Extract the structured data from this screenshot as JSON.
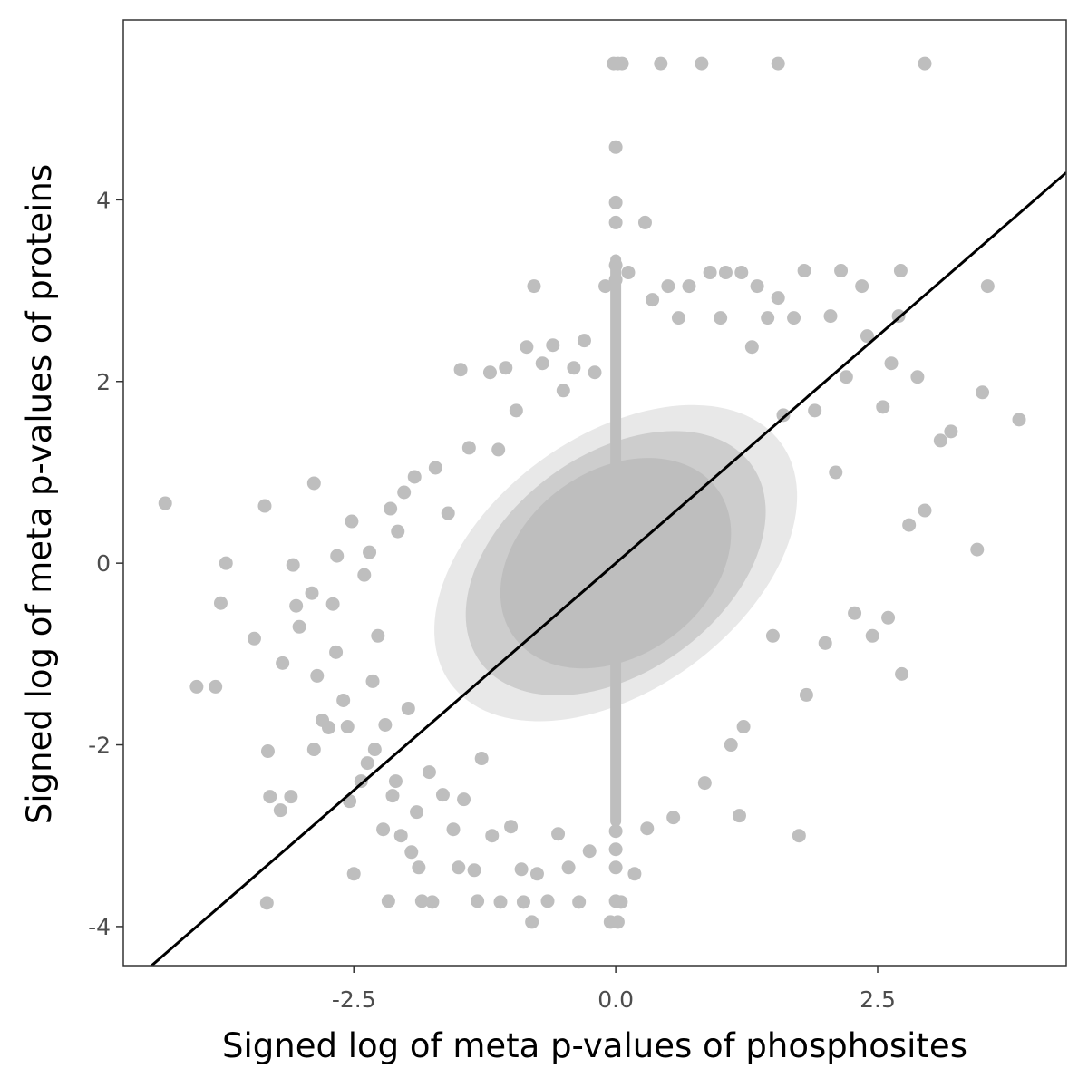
{
  "chart_data": {
    "type": "scatter",
    "xlabel": "Signed log of meta p-values of phosphosites",
    "ylabel": "Signed log of meta p-values of proteins",
    "xlim": [
      -4.7,
      4.3
    ],
    "ylim": [
      -4.43,
      5.98
    ],
    "x_ticks": [
      {
        "value": -2.5,
        "label": "-2.5"
      },
      {
        "value": 0.0,
        "label": "0.0"
      },
      {
        "value": 2.5,
        "label": "2.5"
      }
    ],
    "y_ticks": [
      {
        "value": -4,
        "label": "-4"
      },
      {
        "value": -2,
        "label": "-2"
      },
      {
        "value": 0,
        "label": "0"
      },
      {
        "value": 2,
        "label": "2"
      },
      {
        "value": 4,
        "label": "4"
      }
    ],
    "grid": false,
    "legend": "none",
    "point_color": "#bebebe",
    "line_color": "#000000",
    "reference_line": {
      "slope": 1,
      "intercept": 0
    },
    "series": [
      {
        "points": [
          [
            -4.3,
            0.66
          ],
          [
            -4.0,
            -1.36
          ],
          [
            -3.82,
            -1.36
          ],
          [
            -3.77,
            -0.44
          ],
          [
            -3.72,
            0.0
          ],
          [
            -3.45,
            -0.83
          ],
          [
            -3.35,
            0.63
          ],
          [
            -3.32,
            -2.07
          ],
          [
            -3.3,
            -2.57
          ],
          [
            -3.33,
            -3.74
          ],
          [
            -3.18,
            -1.1
          ],
          [
            -3.2,
            -2.72
          ],
          [
            -3.1,
            -2.57
          ],
          [
            -3.08,
            -0.02
          ],
          [
            -3.05,
            -0.47
          ],
          [
            -3.02,
            -0.7
          ],
          [
            -2.9,
            -0.33
          ],
          [
            -2.88,
            -2.05
          ],
          [
            -2.85,
            -1.24
          ],
          [
            -2.88,
            0.88
          ],
          [
            -2.8,
            -1.73
          ],
          [
            -2.74,
            -1.81
          ],
          [
            -2.7,
            -0.45
          ],
          [
            -2.66,
            0.08
          ],
          [
            -2.67,
            -0.98
          ],
          [
            -2.6,
            -1.51
          ],
          [
            -2.56,
            -1.8
          ],
          [
            -2.54,
            -2.62
          ],
          [
            -2.52,
            0.46
          ],
          [
            -2.5,
            -3.42
          ],
          [
            -2.43,
            -2.4
          ],
          [
            -2.4,
            -0.13
          ],
          [
            -2.37,
            -2.2
          ],
          [
            -2.35,
            0.12
          ],
          [
            -2.32,
            -1.3
          ],
          [
            -2.3,
            -2.05
          ],
          [
            -2.27,
            -0.8
          ],
          [
            -2.22,
            -2.93
          ],
          [
            -2.2,
            -1.78
          ],
          [
            -2.17,
            -3.72
          ],
          [
            -2.15,
            0.6
          ],
          [
            -2.13,
            -2.56
          ],
          [
            -2.1,
            -2.4
          ],
          [
            -2.08,
            0.35
          ],
          [
            -2.05,
            -3.0
          ],
          [
            -2.02,
            0.78
          ],
          [
            -1.98,
            -1.6
          ],
          [
            -1.95,
            -3.18
          ],
          [
            -1.92,
            0.95
          ],
          [
            -1.9,
            -2.74
          ],
          [
            -1.88,
            -3.35
          ],
          [
            -1.85,
            -3.72
          ],
          [
            -1.78,
            -2.3
          ],
          [
            -1.75,
            -3.73
          ],
          [
            -1.72,
            1.05
          ],
          [
            -1.65,
            -2.55
          ],
          [
            -1.6,
            0.55
          ],
          [
            -1.55,
            -2.93
          ],
          [
            -1.5,
            -3.35
          ],
          [
            -1.48,
            2.13
          ],
          [
            -1.45,
            -2.6
          ],
          [
            -1.4,
            1.27
          ],
          [
            -1.35,
            -3.38
          ],
          [
            -1.32,
            -3.72
          ],
          [
            -1.28,
            -2.15
          ],
          [
            -1.2,
            2.1
          ],
          [
            -1.18,
            -3.0
          ],
          [
            -1.12,
            1.25
          ],
          [
            -1.1,
            -3.73
          ],
          [
            -1.05,
            2.15
          ],
          [
            -1.0,
            -2.9
          ],
          [
            -0.95,
            1.68
          ],
          [
            -0.9,
            -3.37
          ],
          [
            -0.88,
            -3.73
          ],
          [
            -0.85,
            2.38
          ],
          [
            -0.8,
            -3.95
          ],
          [
            -0.78,
            3.05
          ],
          [
            -0.75,
            -3.42
          ],
          [
            -0.7,
            2.2
          ],
          [
            -0.65,
            -3.72
          ],
          [
            -0.6,
            2.4
          ],
          [
            -0.55,
            -2.98
          ],
          [
            -0.5,
            1.9
          ],
          [
            -0.45,
            -3.35
          ],
          [
            -0.4,
            2.15
          ],
          [
            -0.35,
            -3.73
          ],
          [
            -0.3,
            2.45
          ],
          [
            -0.25,
            -3.17
          ],
          [
            -0.2,
            2.1
          ],
          [
            -0.1,
            3.05
          ],
          [
            -0.05,
            -3.95
          ],
          [
            -0.02,
            5.5
          ],
          [
            0.02,
            5.5
          ],
          [
            0.0,
            4.58
          ],
          [
            0.0,
            3.97
          ],
          [
            0.0,
            3.75
          ],
          [
            0.0,
            3.28
          ],
          [
            0.0,
            3.12
          ],
          [
            0.0,
            -2.95
          ],
          [
            0.0,
            -3.15
          ],
          [
            0.0,
            -3.35
          ],
          [
            0.0,
            -3.72
          ],
          [
            0.02,
            -3.95
          ],
          [
            0.06,
            5.5
          ],
          [
            0.05,
            -3.73
          ],
          [
            0.12,
            3.2
          ],
          [
            0.18,
            -3.42
          ],
          [
            0.28,
            3.75
          ],
          [
            0.3,
            -2.92
          ],
          [
            0.35,
            2.9
          ],
          [
            0.43,
            5.5
          ],
          [
            0.5,
            3.05
          ],
          [
            0.55,
            -2.8
          ],
          [
            0.6,
            2.7
          ],
          [
            0.7,
            3.05
          ],
          [
            0.82,
            5.5
          ],
          [
            0.85,
            -2.42
          ],
          [
            0.9,
            3.2
          ],
          [
            1.0,
            2.7
          ],
          [
            1.05,
            3.2
          ],
          [
            1.1,
            -2.0
          ],
          [
            1.18,
            -2.78
          ],
          [
            1.2,
            3.2
          ],
          [
            1.22,
            -1.8
          ],
          [
            1.3,
            2.38
          ],
          [
            1.35,
            3.05
          ],
          [
            1.45,
            2.7
          ],
          [
            1.5,
            -0.8
          ],
          [
            1.55,
            5.5
          ],
          [
            1.55,
            2.92
          ],
          [
            1.6,
            1.63
          ],
          [
            1.7,
            2.7
          ],
          [
            1.75,
            -3.0
          ],
          [
            1.8,
            3.22
          ],
          [
            1.82,
            -1.45
          ],
          [
            1.9,
            1.68
          ],
          [
            2.0,
            -0.88
          ],
          [
            2.05,
            2.72
          ],
          [
            2.1,
            1.0
          ],
          [
            2.15,
            3.22
          ],
          [
            2.2,
            2.05
          ],
          [
            2.28,
            -0.55
          ],
          [
            2.35,
            3.05
          ],
          [
            2.4,
            2.5
          ],
          [
            2.45,
            -0.8
          ],
          [
            2.55,
            1.72
          ],
          [
            2.6,
            -0.6
          ],
          [
            2.63,
            2.2
          ],
          [
            2.7,
            2.72
          ],
          [
            2.73,
            -1.22
          ],
          [
            2.72,
            3.22
          ],
          [
            2.8,
            0.42
          ],
          [
            2.88,
            2.05
          ],
          [
            2.95,
            5.5
          ],
          [
            2.95,
            0.58
          ],
          [
            3.1,
            1.35
          ],
          [
            3.2,
            1.45
          ],
          [
            3.45,
            0.15
          ],
          [
            3.5,
            1.88
          ],
          [
            3.55,
            3.05
          ],
          [
            3.85,
            1.58
          ]
        ]
      }
    ]
  }
}
